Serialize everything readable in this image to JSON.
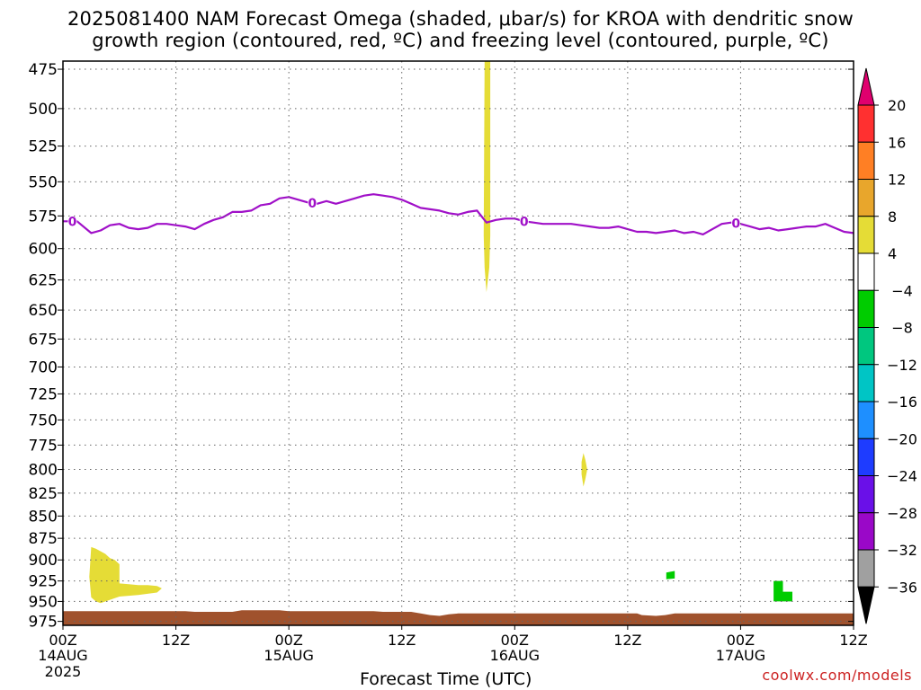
{
  "title": {
    "line1": "2025081400 NAM Forecast Omega (shaded, μbar/s) for KROA with dendritic snow",
    "line2": "growth region (contoured, red, ºC) and freezing level (contoured, purple, ºC)"
  },
  "credit": "coolwx.com/models",
  "chart_data": {
    "type": "heatmap",
    "xlabel": "Forecast Time (UTC)",
    "ylabel": "",
    "x_range_hours": [
      0,
      84
    ],
    "y_range_hpa": [
      470,
      980
    ],
    "y_ticks": [
      475,
      500,
      525,
      550,
      575,
      600,
      625,
      650,
      675,
      700,
      725,
      750,
      775,
      800,
      825,
      850,
      875,
      900,
      925,
      950,
      975
    ],
    "x_ticks": [
      {
        "hour": 0,
        "label": "00Z",
        "date": "14AUG",
        "year": "2025"
      },
      {
        "hour": 12,
        "label": "12Z",
        "date": "",
        "year": ""
      },
      {
        "hour": 24,
        "label": "00Z",
        "date": "15AUG",
        "year": ""
      },
      {
        "hour": 36,
        "label": "12Z",
        "date": "",
        "year": ""
      },
      {
        "hour": 48,
        "label": "00Z",
        "date": "16AUG",
        "year": ""
      },
      {
        "hour": 60,
        "label": "12Z",
        "date": "",
        "year": ""
      },
      {
        "hour": 72,
        "label": "00Z",
        "date": "17AUG",
        "year": ""
      },
      {
        "hour": 84,
        "label": "12Z",
        "date": "",
        "year": ""
      }
    ],
    "grid": true,
    "colorbar": {
      "levels": [
        20,
        16,
        12,
        8,
        4,
        -4,
        -8,
        -12,
        -16,
        -20,
        -24,
        -28,
        -32,
        -36
      ],
      "colors": [
        "#e0006e",
        "#ff3030",
        "#ff7f24",
        "#e8a62c",
        "#e5dc36",
        "#ffffff",
        "#00cc00",
        "#00c77f",
        "#00c5c5",
        "#1e8fff",
        "#1e3cff",
        "#6a10e8",
        "#9a08c8",
        "#a0a0a0",
        "#000000"
      ]
    },
    "freezing_level": {
      "color": "#a010c8",
      "label": "0",
      "label_hours": [
        1,
        26.5,
        49,
        71.5
      ],
      "points": [
        [
          0,
          579
        ],
        [
          1.5,
          579
        ],
        [
          3,
          588
        ],
        [
          4,
          586
        ],
        [
          5,
          582
        ],
        [
          6,
          581
        ],
        [
          7,
          584
        ],
        [
          8,
          585
        ],
        [
          9,
          584
        ],
        [
          10,
          581
        ],
        [
          11,
          581
        ],
        [
          12,
          582
        ],
        [
          13,
          583
        ],
        [
          14,
          585
        ],
        [
          15,
          581
        ],
        [
          16,
          578
        ],
        [
          17,
          576
        ],
        [
          18,
          572
        ],
        [
          19,
          572
        ],
        [
          20,
          571
        ],
        [
          21,
          567
        ],
        [
          22,
          566
        ],
        [
          23,
          562
        ],
        [
          24,
          561
        ],
        [
          25,
          563
        ],
        [
          26,
          565
        ],
        [
          27,
          566
        ],
        [
          28,
          564
        ],
        [
          29,
          566
        ],
        [
          30,
          564
        ],
        [
          31,
          562
        ],
        [
          32,
          560
        ],
        [
          33,
          559
        ],
        [
          34,
          560
        ],
        [
          35,
          561
        ],
        [
          36,
          563
        ],
        [
          37,
          566
        ],
        [
          38,
          569
        ],
        [
          39,
          570
        ],
        [
          40,
          571
        ],
        [
          41,
          573
        ],
        [
          42,
          574
        ],
        [
          43,
          572
        ],
        [
          44,
          571
        ],
        [
          45,
          580
        ],
        [
          46,
          578
        ],
        [
          47,
          577
        ],
        [
          48,
          577
        ],
        [
          49,
          579
        ],
        [
          50,
          580
        ],
        [
          51,
          581
        ],
        [
          52,
          581
        ],
        [
          53,
          581
        ],
        [
          54,
          581
        ],
        [
          55,
          582
        ],
        [
          56,
          583
        ],
        [
          57,
          584
        ],
        [
          58,
          584
        ],
        [
          59,
          583
        ],
        [
          60,
          585
        ],
        [
          61,
          587
        ],
        [
          62,
          587
        ],
        [
          63,
          588
        ],
        [
          64,
          587
        ],
        [
          65,
          586
        ],
        [
          66,
          588
        ],
        [
          67,
          587
        ],
        [
          68,
          589
        ],
        [
          69,
          585
        ],
        [
          70,
          581
        ],
        [
          71,
          580
        ],
        [
          72,
          581
        ],
        [
          73,
          583
        ],
        [
          74,
          585
        ],
        [
          75,
          584
        ],
        [
          76,
          586
        ],
        [
          77,
          585
        ],
        [
          78,
          584
        ],
        [
          79,
          583
        ],
        [
          80,
          583
        ],
        [
          81,
          581
        ],
        [
          82,
          584
        ],
        [
          83,
          587
        ],
        [
          84,
          588
        ]
      ]
    },
    "omega_regions": [
      {
        "name": "low-level-yellow-blob",
        "color": "#e5dc36",
        "points": [
          [
            3,
            885
          ],
          [
            3.5,
            887
          ],
          [
            4.5,
            893
          ],
          [
            5,
            898
          ],
          [
            5.5,
            900
          ],
          [
            6,
            905
          ],
          [
            6,
            928
          ],
          [
            7,
            929
          ],
          [
            8,
            930
          ],
          [
            9,
            930
          ],
          [
            10,
            931
          ],
          [
            10.5,
            934
          ],
          [
            10,
            939
          ],
          [
            8,
            942
          ],
          [
            6,
            944
          ],
          [
            5,
            948
          ],
          [
            4,
            952
          ],
          [
            3.5,
            950
          ],
          [
            3,
            945
          ],
          [
            2.8,
            920
          ]
        ]
      },
      {
        "name": "vertical-yellow-band",
        "color": "#e5dc36",
        "points": [
          [
            44.8,
            470
          ],
          [
            45.4,
            470
          ],
          [
            45.4,
            590
          ],
          [
            45.3,
            615
          ],
          [
            45,
            635
          ],
          [
            44.8,
            615
          ],
          [
            44.7,
            590
          ]
        ]
      },
      {
        "name": "small-yellow-spot",
        "color": "#e5dc36",
        "points": [
          [
            55.3,
            783
          ],
          [
            55.5,
            790
          ],
          [
            55.7,
            800
          ],
          [
            55.5,
            810
          ],
          [
            55.3,
            818
          ],
          [
            55.1,
            805
          ],
          [
            55.1,
            792
          ]
        ]
      },
      {
        "name": "green-spot-1",
        "color": "#00cc00",
        "points": [
          [
            64.1,
            915
          ],
          [
            65,
            913
          ],
          [
            65,
            922
          ],
          [
            64.1,
            923
          ]
        ]
      },
      {
        "name": "green-spot-2",
        "color": "#00cc00",
        "points": [
          [
            75.5,
            925
          ],
          [
            76.5,
            925
          ],
          [
            76.5,
            938
          ],
          [
            77.5,
            938
          ],
          [
            77.5,
            950
          ],
          [
            75.5,
            950
          ]
        ]
      }
    ],
    "terrain": {
      "color": "#a0522d",
      "top_points": [
        [
          0,
          962
        ],
        [
          13,
          962
        ],
        [
          14,
          963
        ],
        [
          18,
          963
        ],
        [
          19,
          961
        ],
        [
          23,
          961
        ],
        [
          24,
          962
        ],
        [
          33,
          962
        ],
        [
          34,
          963
        ],
        [
          37,
          963
        ],
        [
          38,
          965
        ],
        [
          39,
          967
        ],
        [
          40,
          968
        ],
        [
          41,
          966
        ],
        [
          42,
          965
        ],
        [
          54,
          965
        ],
        [
          61,
          965
        ],
        [
          61.5,
          967
        ],
        [
          63,
          968
        ],
        [
          64,
          967
        ],
        [
          65,
          965
        ],
        [
          84,
          965
        ]
      ]
    }
  }
}
